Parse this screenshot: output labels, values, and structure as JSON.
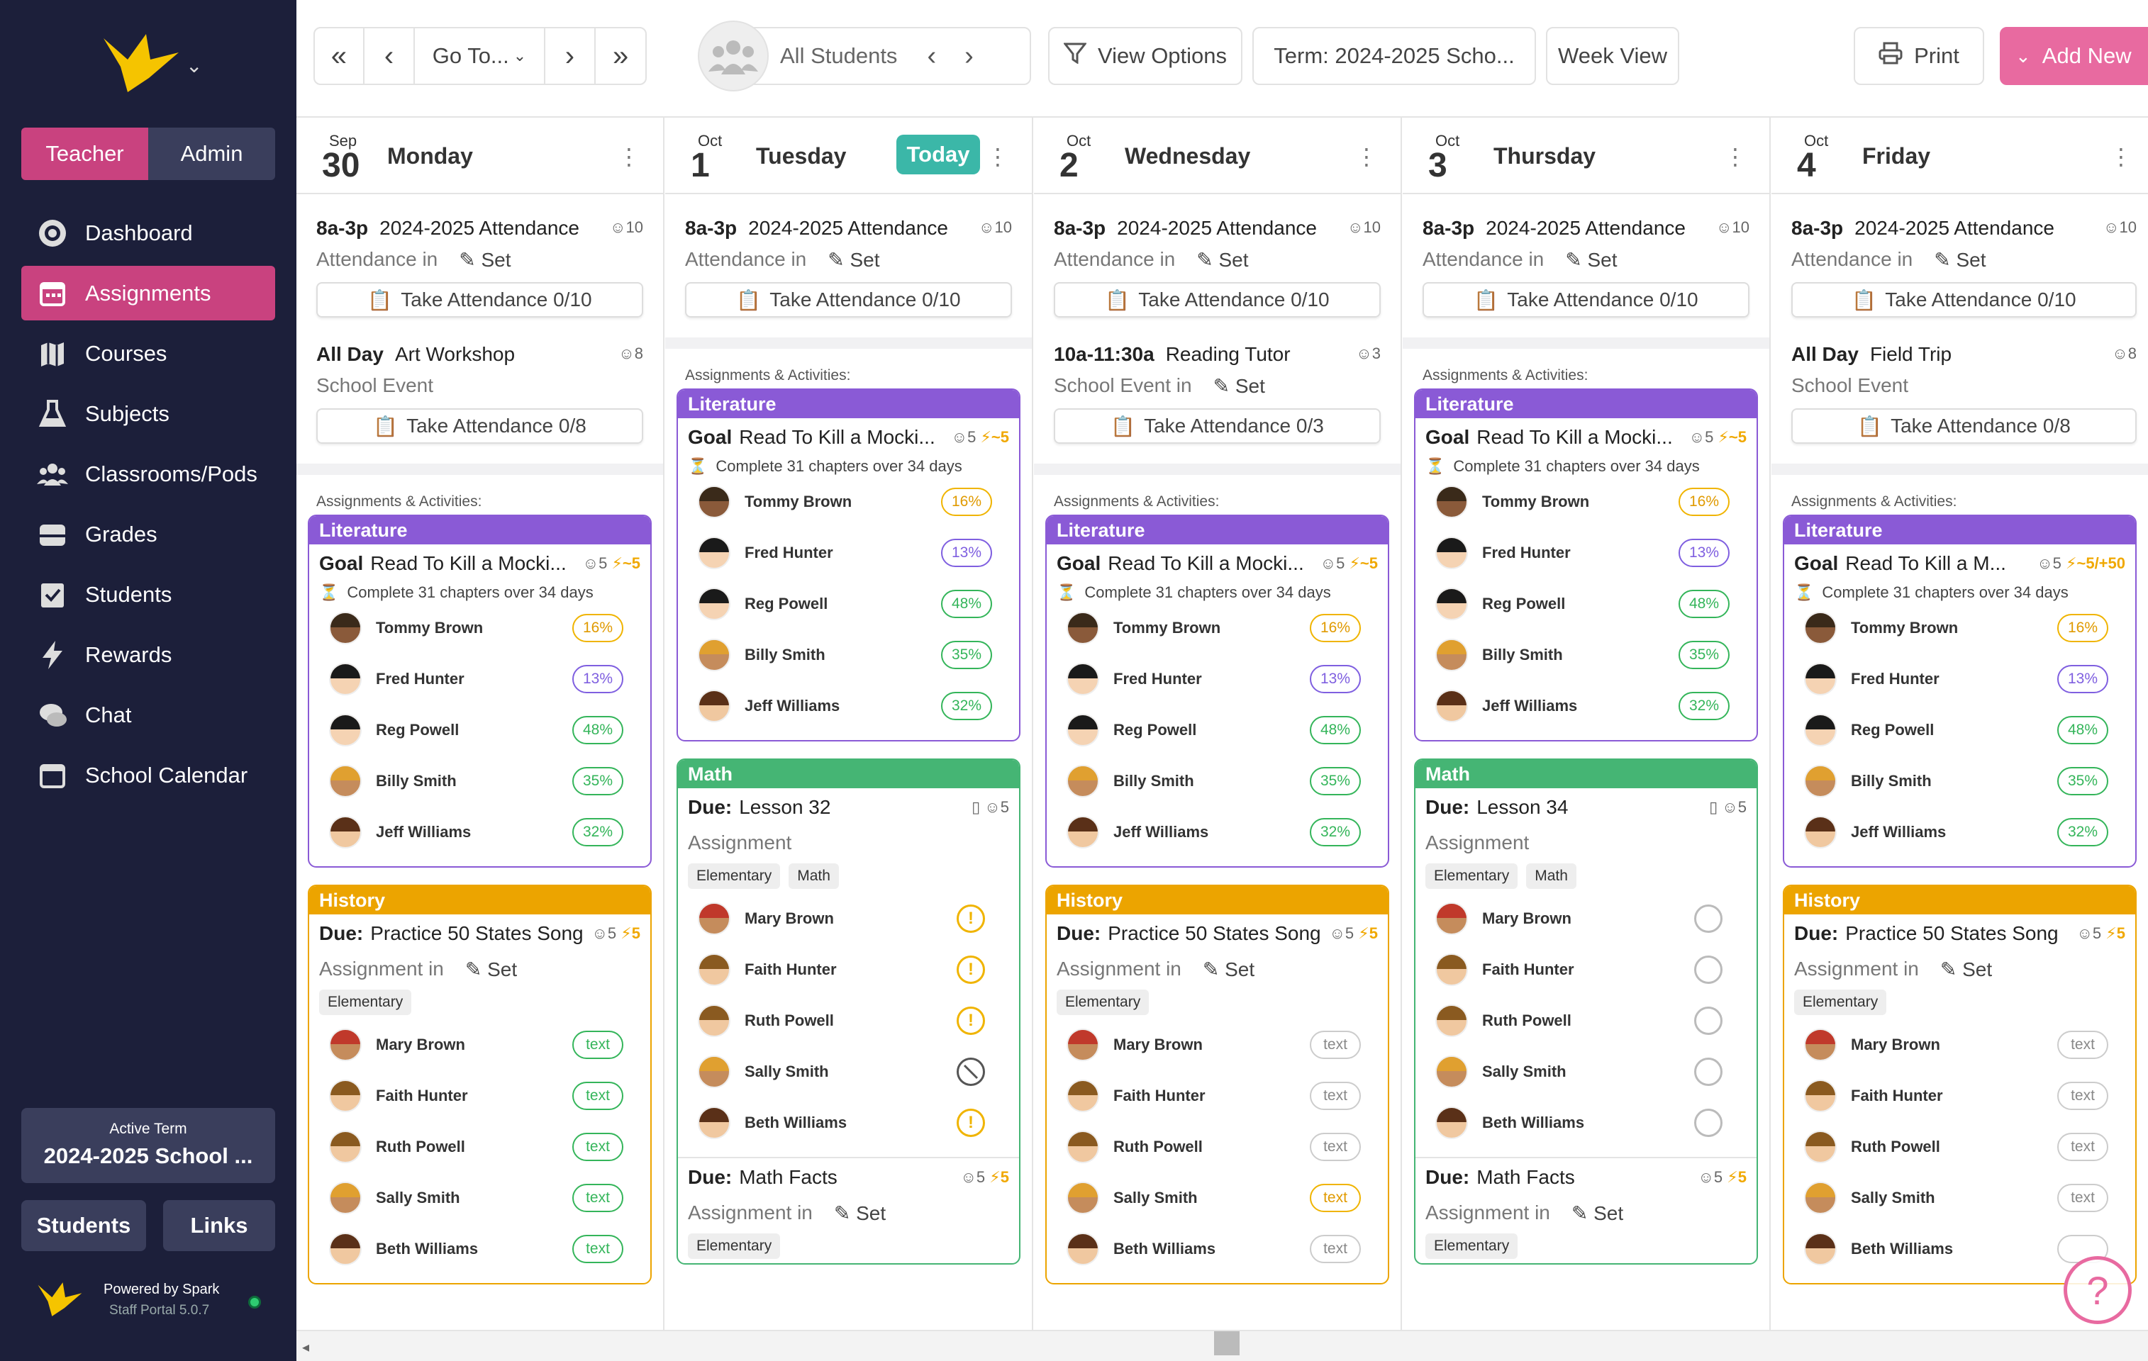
{
  "sidebar": {
    "role_teacher": "Teacher",
    "role_admin": "Admin",
    "nav": [
      {
        "label": "Dashboard",
        "icon": "dashboard-icon"
      },
      {
        "label": "Assignments",
        "icon": "calendar-icon",
        "active": true
      },
      {
        "label": "Courses",
        "icon": "map-icon"
      },
      {
        "label": "Subjects",
        "icon": "flask-icon"
      },
      {
        "label": "Classrooms/Pods",
        "icon": "group-icon"
      },
      {
        "label": "Grades",
        "icon": "inbox-icon"
      },
      {
        "label": "Students",
        "icon": "checklist-icon"
      },
      {
        "label": "Rewards",
        "icon": "bolt-icon"
      },
      {
        "label": "Chat",
        "icon": "chat-icon"
      },
      {
        "label": "School Calendar",
        "icon": "calendar-outline-icon"
      }
    ],
    "term_label": "Active Term",
    "term_value": "2024-2025 School ...",
    "students_btn": "Students",
    "links_btn": "Links",
    "powered_by": "Powered by Spark",
    "version": "Staff Portal 5.0.7"
  },
  "toolbar": {
    "first": "«",
    "prev": "‹",
    "goto": "Go To...",
    "next": "›",
    "last": "»",
    "filter_students": "All Students",
    "view_options": "View Options",
    "term": "Term: 2024-2025 Scho...",
    "week_view": "Week View",
    "print": "Print",
    "add_new": "Add New"
  },
  "colors": {
    "primary": "#c9427f",
    "teal": "#3bb7a8",
    "literature": "#8a5ad6",
    "math": "#45b574",
    "history": "#eca400"
  },
  "common": {
    "aa_label": "Assignments & Activities:",
    "set": "Set",
    "lit_header": "Literature",
    "math_header": "Math",
    "hist_header": "History",
    "goal": "Goal",
    "due": "Due:",
    "lit_sub": "Complete 31 chapters over 34 days",
    "assignment": "Assignment",
    "assignment_in": "Assignment in",
    "attendance_in": "Attendance in",
    "school_event": "School Event",
    "school_event_in": "School Event in",
    "elementary": "Elementary",
    "math_tag": "Math",
    "text": "text",
    "today": "Today"
  },
  "days": [
    {
      "mon": "Sep",
      "num": "30",
      "name": "Monday",
      "att_time": "8a-3p",
      "att_title": "2024-2025 Attendance",
      "att_count": "10",
      "att_btn": "Take Attendance 0/10",
      "ev_time": "All Day",
      "ev_title": "Art Workshop",
      "ev_count": "8",
      "ev_btn": "Take Attendance 0/8",
      "lit_title": "Read To Kill a Mocki...",
      "lit_meta_count": "5",
      "lit_meta_pts": "~5",
      "lit_students": [
        {
          "name": "Tommy Brown",
          "pct": "16%",
          "c": "y"
        },
        {
          "name": "Fred Hunter",
          "pct": "13%",
          "c": "b"
        },
        {
          "name": "Reg Powell",
          "pct": "48%",
          "c": "g"
        },
        {
          "name": "Billy Smith",
          "pct": "35%",
          "c": "g"
        },
        {
          "name": "Jeff Williams",
          "pct": "32%",
          "c": "g"
        }
      ],
      "hist_title": "Practice 50 States Song",
      "hist_count": "5",
      "hist_pts": "5",
      "hist_students": [
        {
          "name": "Mary Brown",
          "pct": "text",
          "c": "g"
        },
        {
          "name": "Faith Hunter",
          "pct": "text",
          "c": "g"
        },
        {
          "name": "Ruth Powell",
          "pct": "text",
          "c": "g"
        },
        {
          "name": "Sally Smith",
          "pct": "text",
          "c": "g"
        },
        {
          "name": "Beth Williams",
          "pct": "text",
          "c": "g"
        }
      ]
    },
    {
      "mon": "Oct",
      "num": "1",
      "name": "Tuesday",
      "att_time": "8a-3p",
      "att_title": "2024-2025 Attendance",
      "att_count": "10",
      "att_btn": "Take Attendance 0/10",
      "lit_title": "Read To Kill a Mocki...",
      "lit_meta_count": "5",
      "lit_meta_pts": "~5",
      "lit_students": [
        {
          "name": "Tommy Brown",
          "pct": "16%",
          "c": "y"
        },
        {
          "name": "Fred Hunter",
          "pct": "13%",
          "c": "b"
        },
        {
          "name": "Reg Powell",
          "pct": "48%",
          "c": "g"
        },
        {
          "name": "Billy Smith",
          "pct": "35%",
          "c": "g"
        },
        {
          "name": "Jeff Williams",
          "pct": "32%",
          "c": "g"
        }
      ],
      "math_title": "Lesson 32",
      "math_count": "5",
      "math_students": [
        {
          "name": "Mary Brown",
          "s": "w"
        },
        {
          "name": "Faith Hunter",
          "s": "w"
        },
        {
          "name": "Ruth Powell",
          "s": "w"
        },
        {
          "name": "Sally Smith",
          "s": "x"
        },
        {
          "name": "Beth Williams",
          "s": "w"
        }
      ],
      "mf_title": "Math Facts",
      "mf_count": "5",
      "mf_pts": "5"
    },
    {
      "mon": "Oct",
      "num": "2",
      "name": "Wednesday",
      "att_time": "8a-3p",
      "att_title": "2024-2025 Attendance",
      "att_count": "10",
      "att_btn": "Take Attendance 0/10",
      "ev_time": "10a-11:30a",
      "ev_title": "Reading Tutor",
      "ev_count": "3",
      "ev_btn": "Take Attendance 0/3",
      "lit_title": "Read To Kill a Mocki...",
      "lit_meta_count": "5",
      "lit_meta_pts": "~5",
      "lit_students": [
        {
          "name": "Tommy Brown",
          "pct": "16%",
          "c": "y"
        },
        {
          "name": "Fred Hunter",
          "pct": "13%",
          "c": "b"
        },
        {
          "name": "Reg Powell",
          "pct": "48%",
          "c": "g"
        },
        {
          "name": "Billy Smith",
          "pct": "35%",
          "c": "g"
        },
        {
          "name": "Jeff Williams",
          "pct": "32%",
          "c": "g"
        }
      ],
      "hist_title": "Practice 50 States Song",
      "hist_count": "5",
      "hist_pts": "5",
      "hist_students": [
        {
          "name": "Mary Brown",
          "pct": "text",
          "c": "gray"
        },
        {
          "name": "Faith Hunter",
          "pct": "text",
          "c": "gray"
        },
        {
          "name": "Ruth Powell",
          "pct": "text",
          "c": "gray"
        },
        {
          "name": "Sally Smith",
          "pct": "text",
          "c": "y"
        },
        {
          "name": "Beth Williams",
          "pct": "text",
          "c": "gray"
        }
      ]
    },
    {
      "mon": "Oct",
      "num": "3",
      "name": "Thursday",
      "att_time": "8a-3p",
      "att_title": "2024-2025 Attendance",
      "att_count": "10",
      "att_btn": "Take Attendance 0/10",
      "lit_title": "Read To Kill a Mocki...",
      "lit_meta_count": "5",
      "lit_meta_pts": "~5",
      "lit_students": [
        {
          "name": "Tommy Brown",
          "pct": "16%",
          "c": "y"
        },
        {
          "name": "Fred Hunter",
          "pct": "13%",
          "c": "b"
        },
        {
          "name": "Reg Powell",
          "pct": "48%",
          "c": "g"
        },
        {
          "name": "Billy Smith",
          "pct": "35%",
          "c": "g"
        },
        {
          "name": "Jeff Williams",
          "pct": "32%",
          "c": "g"
        }
      ],
      "math_title": "Lesson 34",
      "math_count": "5",
      "math_students": [
        {
          "name": "Mary Brown",
          "s": "e"
        },
        {
          "name": "Faith Hunter",
          "s": "e"
        },
        {
          "name": "Ruth Powell",
          "s": "e"
        },
        {
          "name": "Sally Smith",
          "s": "e"
        },
        {
          "name": "Beth Williams",
          "s": "e"
        }
      ],
      "mf_title": "Math Facts",
      "mf_count": "5",
      "mf_pts": "5"
    },
    {
      "mon": "Oct",
      "num": "4",
      "name": "Friday",
      "att_time": "8a-3p",
      "att_title": "2024-2025 Attendance",
      "att_count": "10",
      "att_btn": "Take Attendance 0/10",
      "ev_time": "All Day",
      "ev_title": "Field Trip",
      "ev_count": "8",
      "ev_btn": "Take Attendance 0/8",
      "lit_title": "Read To Kill a M...",
      "lit_meta_count": "5",
      "lit_meta_pts": "~5/+50",
      "lit_students": [
        {
          "name": "Tommy Brown",
          "pct": "16%",
          "c": "y"
        },
        {
          "name": "Fred Hunter",
          "pct": "13%",
          "c": "b"
        },
        {
          "name": "Reg Powell",
          "pct": "48%",
          "c": "g"
        },
        {
          "name": "Billy Smith",
          "pct": "35%",
          "c": "g"
        },
        {
          "name": "Jeff Williams",
          "pct": "32%",
          "c": "g"
        }
      ],
      "hist_title": "Practice 50 States Song",
      "hist_count": "5",
      "hist_pts": "5",
      "hist_students": [
        {
          "name": "Mary Brown",
          "pct": "text",
          "c": "gray"
        },
        {
          "name": "Faith Hunter",
          "pct": "text",
          "c": "gray"
        },
        {
          "name": "Ruth Powell",
          "pct": "text",
          "c": "gray"
        },
        {
          "name": "Sally Smith",
          "pct": "text",
          "c": "gray"
        },
        {
          "name": "Beth Williams",
          "pct": "",
          "c": "gray"
        }
      ]
    }
  ]
}
